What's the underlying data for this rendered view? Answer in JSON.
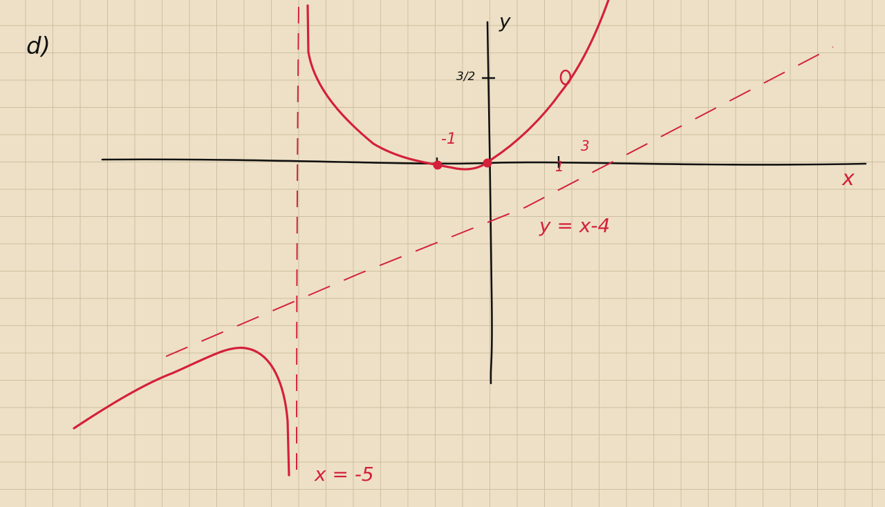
{
  "part_label": "d)",
  "axes": {
    "x_label": "x",
    "y_label": "y"
  },
  "tick_labels": {
    "neg_one": "-1",
    "one": "1",
    "three_halves": "3/2",
    "three": "3"
  },
  "asymptotes": {
    "vertical_label": "x = -5",
    "oblique_label": "y = x-4"
  },
  "colors": {
    "paper": "#ede0c6",
    "grid": "#cdbf9f",
    "axes": "#111111",
    "curve": "#d4203a"
  }
}
